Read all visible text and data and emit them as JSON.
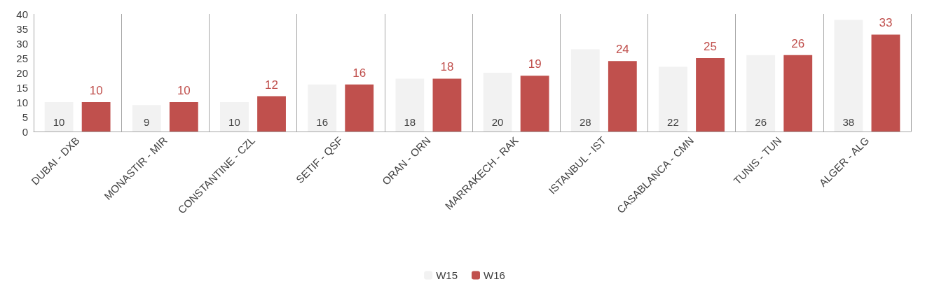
{
  "chart_data": {
    "type": "bar",
    "categories": [
      "DUBAI - DXB",
      "MONASTIR - MIR",
      "CONSTANTINE - CZL",
      "SETIF - QSF",
      "ORAN - ORN",
      "MARRAKECH - RAK",
      "ISTANBUL - IST",
      "CASABLANCA - CMN",
      "TUNIS - TUN",
      "ALGER - ALG"
    ],
    "series": [
      {
        "name": "W15",
        "color": "#f2f2f2",
        "values": [
          10,
          9,
          10,
          16,
          18,
          20,
          28,
          22,
          26,
          38
        ]
      },
      {
        "name": "W16",
        "color": "#c0504d",
        "values": [
          10,
          10,
          12,
          16,
          18,
          19,
          24,
          25,
          26,
          33
        ]
      }
    ],
    "ylim": [
      0,
      40
    ],
    "yticks": [
      0,
      5,
      10,
      15,
      20,
      25,
      30,
      35,
      40
    ],
    "grid": "x",
    "legend": "bottom",
    "data_labels": true
  }
}
